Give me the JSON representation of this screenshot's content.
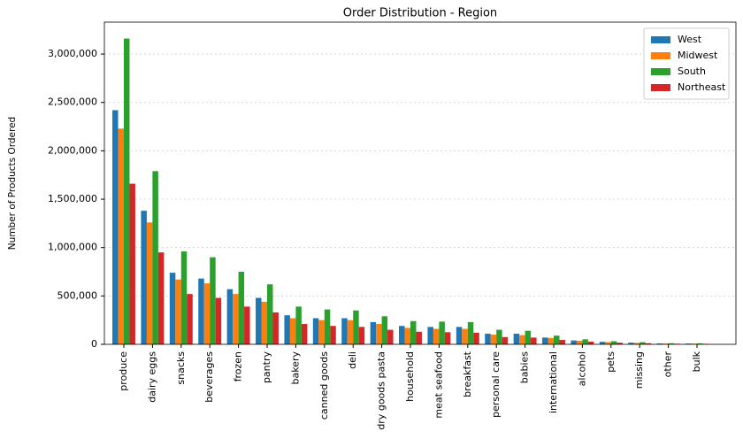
{
  "chart_data": {
    "type": "bar",
    "title": "Order Distribution - Region",
    "y_label": "Number of Products Ordered",
    "categories": [
      "produce",
      "dairy eggs",
      "snacks",
      "beverages",
      "frozen",
      "pantry",
      "bakery",
      "canned goods",
      "deli",
      "dry goods pasta",
      "household",
      "meat seafood",
      "breakfast",
      "personal care",
      "babies",
      "international",
      "alcohol",
      "pets",
      "missing",
      "other",
      "bulk"
    ],
    "series": [
      {
        "name": "West",
        "color": "#1f77b4",
        "values": [
          2420000,
          1380000,
          740000,
          680000,
          570000,
          480000,
          300000,
          270000,
          270000,
          230000,
          190000,
          180000,
          180000,
          110000,
          110000,
          70000,
          40000,
          26000,
          17000,
          9000,
          8000
        ]
      },
      {
        "name": "Midwest",
        "color": "#ff7f0e",
        "values": [
          2230000,
          1260000,
          670000,
          630000,
          520000,
          440000,
          270000,
          250000,
          250000,
          210000,
          170000,
          160000,
          160000,
          100000,
          95000,
          65000,
          37000,
          23000,
          15000,
          8000,
          7000
        ]
      },
      {
        "name": "South",
        "color": "#2ca02c",
        "values": [
          3160000,
          1790000,
          960000,
          900000,
          750000,
          620000,
          390000,
          360000,
          350000,
          290000,
          240000,
          235000,
          230000,
          150000,
          140000,
          90000,
          52000,
          32000,
          22000,
          11000,
          10000
        ]
      },
      {
        "name": "Northeast",
        "color": "#d62728",
        "values": [
          1660000,
          950000,
          520000,
          480000,
          390000,
          330000,
          210000,
          190000,
          180000,
          150000,
          130000,
          125000,
          120000,
          75000,
          70000,
          45000,
          28000,
          17000,
          11000,
          6000,
          5000
        ]
      }
    ],
    "ylim": [
      0,
      3330000
    ],
    "yticks": [
      0,
      {
        "value": 500000,
        "label": "500,000"
      },
      {
        "value": 1000000,
        "label": "1,000,000"
      },
      {
        "value": 1500000,
        "label": "1,500,000"
      },
      {
        "value": 2000000,
        "label": "2,000,000"
      },
      {
        "value": 2500000,
        "label": "2,500,000"
      },
      {
        "value": 3000000,
        "label": "3,000,000"
      }
    ],
    "grid": true,
    "legend": "upper right"
  }
}
